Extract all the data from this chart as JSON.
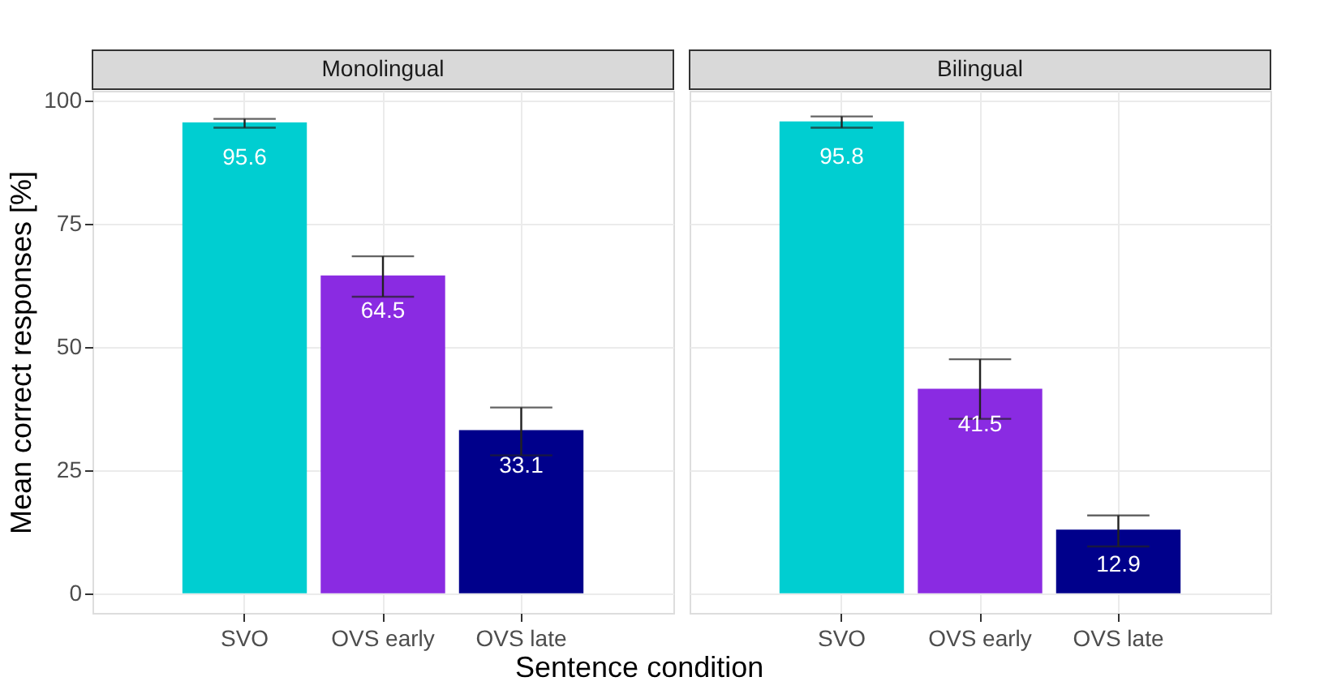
{
  "chart_data": [
    {
      "type": "bar",
      "title": "Monolingual",
      "xlabel": "Sentence condition",
      "ylabel": "Mean correct responses [%]",
      "categories": [
        "SVO",
        "OVS early",
        "OVS late"
      ],
      "values": [
        95.6,
        64.5,
        33.1
      ],
      "colors": [
        "#00ced1",
        "#8a2be2",
        "#00008b"
      ],
      "errors": [
        [
          94.5,
          96.3
        ],
        [
          60.2,
          68.4
        ],
        [
          28.0,
          37.7
        ]
      ],
      "data_labels": true,
      "ylim": [
        -4,
        102
      ],
      "yticks": [
        0,
        25,
        50,
        75,
        100
      ],
      "grid": true
    },
    {
      "type": "bar",
      "title": "Bilingual",
      "categories": [
        "SVO",
        "OVS early",
        "OVS late"
      ],
      "values": [
        95.8,
        41.5,
        12.9
      ],
      "colors": [
        "#00ced1",
        "#8a2be2",
        "#00008b"
      ],
      "errors": [
        [
          94.5,
          96.8
        ],
        [
          35.4,
          47.5
        ],
        [
          9.5,
          15.8
        ]
      ],
      "data_labels": true,
      "ylim": [
        -4,
        102
      ],
      "yticks": [
        0,
        25,
        50,
        75,
        100
      ],
      "grid": true,
      "tick_labels": "x"
    }
  ]
}
